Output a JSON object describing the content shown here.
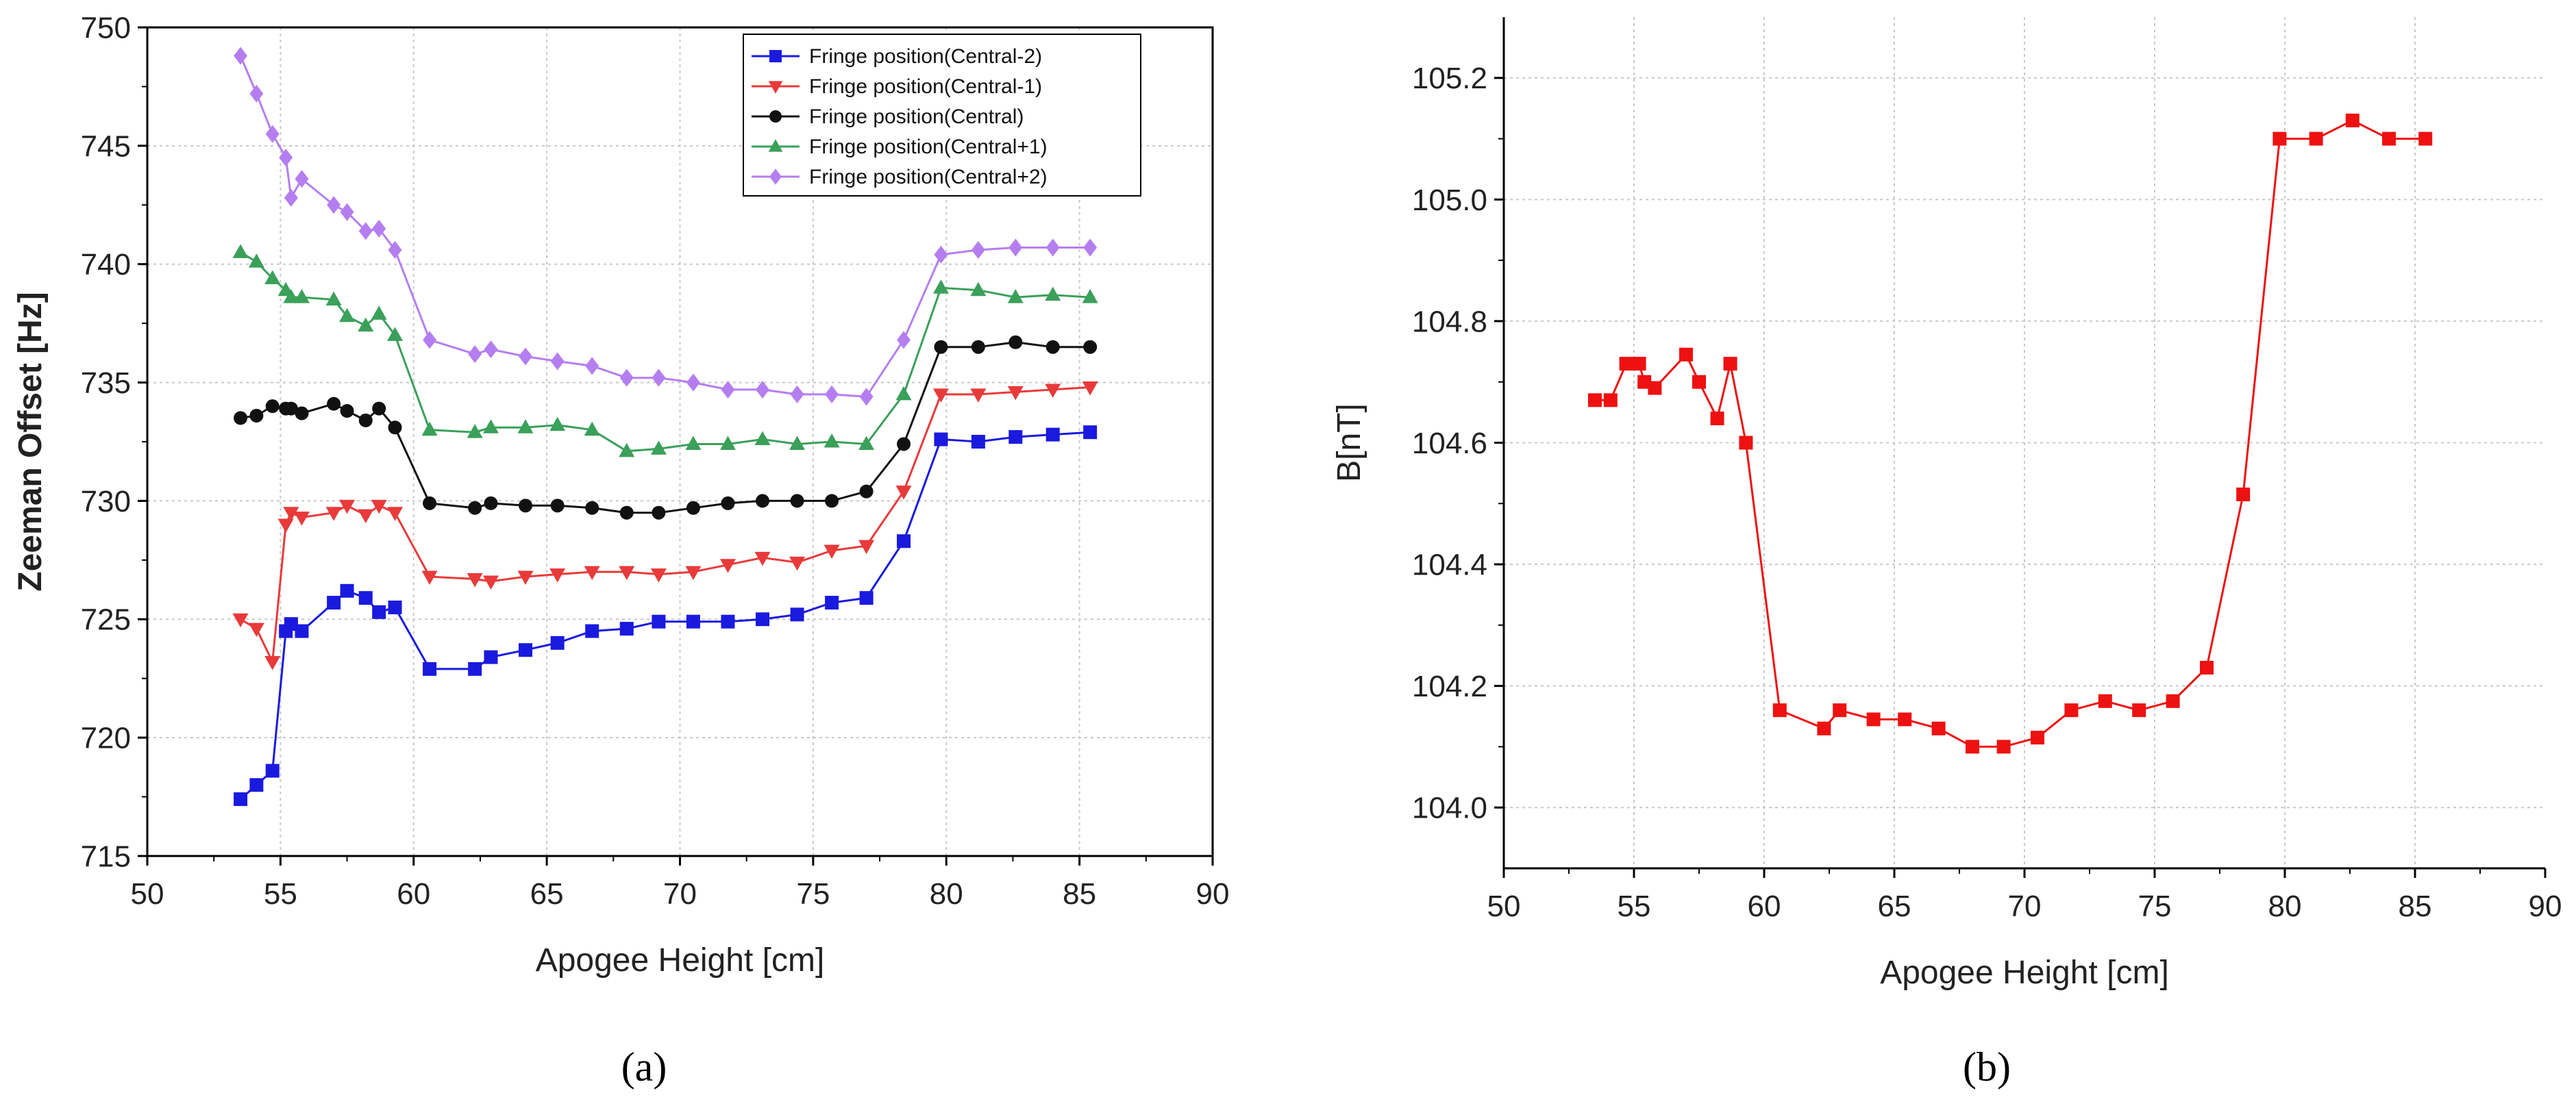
{
  "chart_data": [
    {
      "type": "line",
      "panel": "a",
      "title": "",
      "xlabel": "Apogee Height [cm]",
      "ylabel": "Zeeman Offset [Hz]",
      "xlim": [
        50,
        90
      ],
      "ylim": [
        715,
        750
      ],
      "xticks": [
        50,
        55,
        60,
        65,
        70,
        75,
        80,
        85,
        90
      ],
      "yticks": [
        715,
        720,
        725,
        730,
        735,
        740,
        745,
        750
      ],
      "grid": true,
      "legend_position": "top-right",
      "x": [
        53.5,
        54.1,
        54.7,
        55.2,
        55.4,
        55.8,
        57.0,
        57.5,
        58.2,
        58.7,
        59.3,
        60.6,
        62.3,
        62.9,
        64.2,
        65.4,
        66.7,
        68.0,
        69.2,
        70.5,
        71.8,
        73.1,
        74.4,
        75.7,
        77.0,
        78.4,
        79.8,
        81.2,
        82.6,
        84.0,
        85.4
      ],
      "series": [
        {
          "name": "Fringe position(Central-2)",
          "color": "#1a1adf",
          "marker": "square",
          "values": [
            717.4,
            718.0,
            718.6,
            724.5,
            724.8,
            724.5,
            725.7,
            726.2,
            725.9,
            725.3,
            725.5,
            722.9,
            722.9,
            723.4,
            723.7,
            724.0,
            724.5,
            724.6,
            724.9,
            724.9,
            724.9,
            725.0,
            725.2,
            725.7,
            725.9,
            728.3,
            732.6,
            732.5,
            732.7,
            732.8,
            732.9
          ]
        },
        {
          "name": "Fringe position(Central-1)",
          "color": "#e83a3a",
          "marker": "triangle-down",
          "values": [
            725.0,
            724.6,
            723.2,
            729.0,
            729.5,
            729.3,
            729.5,
            729.8,
            729.4,
            729.8,
            729.5,
            726.8,
            726.7,
            726.6,
            726.8,
            726.9,
            727.0,
            727.0,
            726.9,
            727.0,
            727.3,
            727.6,
            727.4,
            727.9,
            728.1,
            730.4,
            734.5,
            734.5,
            734.6,
            734.7,
            734.8
          ]
        },
        {
          "name": "Fringe position(Central)",
          "color": "#111111",
          "marker": "circle",
          "values": [
            733.5,
            733.6,
            734.0,
            733.9,
            733.9,
            733.7,
            734.1,
            733.8,
            733.4,
            733.9,
            733.1,
            729.9,
            729.7,
            729.9,
            729.8,
            729.8,
            729.7,
            729.5,
            729.5,
            729.7,
            729.9,
            730.0,
            730.0,
            730.0,
            730.4,
            732.4,
            736.5,
            736.5,
            736.7,
            736.5,
            736.5
          ]
        },
        {
          "name": "Fringe position(Central+1)",
          "color": "#3aa05a",
          "marker": "triangle-up",
          "values": [
            740.5,
            740.1,
            739.4,
            738.9,
            738.6,
            738.6,
            738.5,
            737.8,
            737.4,
            737.9,
            737.0,
            733.0,
            732.9,
            733.1,
            733.1,
            733.2,
            733.0,
            732.1,
            732.2,
            732.4,
            732.4,
            732.6,
            732.4,
            732.5,
            732.4,
            734.5,
            739.0,
            738.9,
            738.6,
            738.7,
            738.6
          ]
        },
        {
          "name": "Fringe position(Central+2)",
          "color": "#b57ef0",
          "marker": "diamond",
          "values": [
            748.8,
            747.2,
            745.5,
            744.5,
            742.8,
            743.6,
            742.5,
            742.2,
            741.4,
            741.5,
            740.6,
            736.8,
            736.2,
            736.4,
            736.1,
            735.9,
            735.7,
            735.2,
            735.2,
            735.0,
            734.7,
            734.7,
            734.5,
            734.5,
            734.4,
            736.8,
            740.4,
            740.6,
            740.7,
            740.7,
            740.7
          ]
        }
      ]
    },
    {
      "type": "line",
      "panel": "b",
      "title": "",
      "xlabel": "Apogee Height [cm]",
      "ylabel": "B[nT]",
      "xlim": [
        50,
        90
      ],
      "ylim": [
        103.9,
        105.3
      ],
      "xticks": [
        50,
        55,
        60,
        65,
        70,
        75,
        80,
        85,
        90
      ],
      "yticks": [
        "104.0",
        "104.2",
        "104.4",
        "104.6",
        "104.8",
        "105.0",
        "105.2"
      ],
      "grid": true,
      "legend_position": "none",
      "series": [
        {
          "name": "B",
          "color": "#ee1111",
          "marker": "square",
          "x": [
            53.5,
            54.1,
            54.7,
            55.2,
            55.4,
            55.8,
            57.0,
            57.5,
            58.2,
            58.7,
            59.3,
            60.6,
            62.3,
            62.9,
            64.2,
            65.4,
            66.7,
            68.0,
            69.2,
            70.5,
            71.8,
            73.1,
            74.4,
            75.7,
            77.0,
            78.4,
            79.8,
            81.2,
            82.6,
            84.0,
            85.4
          ],
          "values": [
            104.67,
            104.67,
            104.73,
            104.73,
            104.7,
            104.69,
            104.745,
            104.7,
            104.64,
            104.73,
            104.6,
            104.16,
            104.13,
            104.16,
            104.145,
            104.145,
            104.13,
            104.1,
            104.1,
            104.115,
            104.16,
            104.175,
            104.16,
            104.175,
            104.23,
            104.515,
            105.1,
            105.1,
            105.13,
            105.1,
            105.1
          ]
        }
      ]
    }
  ],
  "panel_labels": {
    "a": "(a)",
    "b": "(b)"
  }
}
